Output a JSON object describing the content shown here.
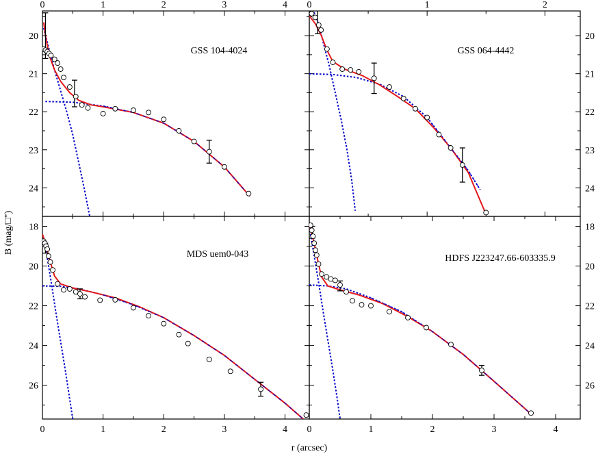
{
  "xlabel": "r (arcsec)",
  "ylabel": "B (mag/□\")",
  "colors": {
    "model": "#e31a1c",
    "component": "#0000cc",
    "points": "#000000"
  },
  "chart_data": [
    {
      "type": "scatter",
      "label": "GSS 104-4024",
      "xlim": [
        0,
        4.4
      ],
      "ylim": [
        24.75,
        19.35
      ],
      "xticks": [
        "0",
        "1",
        "2",
        "3",
        "4"
      ],
      "yticks": [
        "20",
        "21",
        "22",
        "23",
        "24"
      ],
      "points": [
        [
          0.02,
          20.35
        ],
        [
          0.05,
          20.38
        ],
        [
          0.08,
          20.42
        ],
        [
          0.11,
          20.47
        ],
        [
          0.14,
          20.52
        ],
        [
          0.2,
          20.62
        ],
        [
          0.25,
          20.72
        ],
        [
          0.3,
          20.88
        ],
        [
          0.35,
          21.1
        ],
        [
          0.45,
          21.35
        ],
        [
          0.55,
          21.6
        ],
        [
          0.65,
          21.82
        ],
        [
          0.75,
          21.9
        ],
        [
          1.0,
          22.05
        ],
        [
          1.2,
          21.92
        ],
        [
          1.5,
          21.96
        ],
        [
          1.75,
          22.02
        ],
        [
          2.0,
          22.2
        ],
        [
          2.25,
          22.5
        ],
        [
          2.5,
          22.78
        ],
        [
          2.75,
          23.05
        ],
        [
          3.0,
          23.45
        ],
        [
          3.4,
          24.15
        ]
      ],
      "errorbars": [
        [
          0.05,
          20.0,
          0.6
        ],
        [
          0.53,
          21.52,
          0.35
        ],
        [
          2.75,
          23.05,
          0.3
        ]
      ],
      "model": [
        [
          0.02,
          19.65
        ],
        [
          0.06,
          20.1
        ],
        [
          0.12,
          20.55
        ],
        [
          0.2,
          20.9
        ],
        [
          0.3,
          21.2
        ],
        [
          0.45,
          21.5
        ],
        [
          0.6,
          21.7
        ],
        [
          0.8,
          21.82
        ],
        [
          1.0,
          21.87
        ],
        [
          1.5,
          22.02
        ],
        [
          2.0,
          22.3
        ],
        [
          2.5,
          22.78
        ],
        [
          3.0,
          23.45
        ],
        [
          3.42,
          24.22
        ]
      ],
      "disk": [
        [
          0.05,
          21.73
        ],
        [
          0.5,
          21.75
        ],
        [
          1.0,
          21.85
        ],
        [
          1.5,
          22.02
        ],
        [
          2.0,
          22.3
        ],
        [
          2.5,
          22.78
        ],
        [
          3.0,
          23.45
        ],
        [
          3.42,
          24.22
        ]
      ],
      "bulge": [
        [
          0.02,
          19.8
        ],
        [
          0.1,
          20.3
        ],
        [
          0.2,
          20.9
        ],
        [
          0.3,
          21.45
        ],
        [
          0.4,
          22.0
        ],
        [
          0.5,
          22.6
        ],
        [
          0.6,
          23.35
        ],
        [
          0.7,
          24.1
        ],
        [
          0.78,
          24.75
        ]
      ]
    },
    {
      "type": "scatter",
      "label": "GSS 064-4442",
      "xlim": [
        0,
        2.3
      ],
      "ylim": [
        24.75,
        19.35
      ],
      "xticks": [
        "0",
        "1",
        "2"
      ],
      "yticks": [
        "20",
        "21",
        "22",
        "23",
        "24"
      ],
      "points": [
        [
          0.02,
          19.42
        ],
        [
          0.05,
          19.52
        ],
        [
          0.08,
          19.72
        ],
        [
          0.1,
          19.85
        ],
        [
          0.15,
          20.35
        ],
        [
          0.2,
          20.7
        ],
        [
          0.28,
          20.88
        ],
        [
          0.35,
          20.9
        ],
        [
          0.42,
          20.95
        ],
        [
          0.55,
          21.12
        ],
        [
          0.68,
          21.35
        ],
        [
          0.8,
          21.65
        ],
        [
          0.9,
          21.92
        ],
        [
          1.0,
          22.15
        ],
        [
          1.1,
          22.6
        ],
        [
          1.2,
          22.95
        ],
        [
          1.3,
          23.4
        ],
        [
          1.5,
          24.65
        ]
      ],
      "errorbars": [
        [
          0.07,
          19.6,
          0.35
        ],
        [
          0.55,
          21.12,
          0.4
        ],
        [
          1.3,
          23.4,
          0.45
        ]
      ],
      "model": [
        [
          0.0,
          19.48
        ],
        [
          0.05,
          19.68
        ],
        [
          0.1,
          19.98
        ],
        [
          0.15,
          20.38
        ],
        [
          0.2,
          20.68
        ],
        [
          0.3,
          20.88
        ],
        [
          0.45,
          21.05
        ],
        [
          0.6,
          21.3
        ],
        [
          0.75,
          21.6
        ],
        [
          0.9,
          21.92
        ],
        [
          1.05,
          22.4
        ],
        [
          1.2,
          22.95
        ],
        [
          1.35,
          23.6
        ],
        [
          1.5,
          24.7
        ]
      ],
      "disk": [
        [
          0.0,
          21.0
        ],
        [
          0.2,
          21.02
        ],
        [
          0.4,
          21.1
        ],
        [
          0.6,
          21.28
        ],
        [
          0.8,
          21.6
        ],
        [
          1.0,
          22.15
        ],
        [
          1.2,
          22.95
        ],
        [
          1.35,
          23.55
        ],
        [
          1.45,
          24.05
        ]
      ],
      "bulge": [
        [
          0.03,
          19.3
        ],
        [
          0.08,
          19.7
        ],
        [
          0.12,
          20.2
        ],
        [
          0.17,
          20.8
        ],
        [
          0.22,
          21.5
        ],
        [
          0.27,
          22.2
        ],
        [
          0.32,
          23.0
        ],
        [
          0.36,
          23.8
        ],
        [
          0.39,
          24.6
        ]
      ]
    },
    {
      "type": "scatter",
      "label": "MDS uem0-043",
      "xlim": [
        0,
        4.4
      ],
      "ylim": [
        27.7,
        17.5
      ],
      "xticks": [
        "0",
        "1",
        "2",
        "3",
        "4"
      ],
      "yticks": [
        "18",
        "20",
        "22",
        "24",
        "26"
      ],
      "points": [
        [
          0.02,
          18.75
        ],
        [
          0.04,
          18.85
        ],
        [
          0.06,
          19.0
        ],
        [
          0.08,
          19.15
        ],
        [
          0.1,
          19.5
        ],
        [
          0.13,
          19.8
        ],
        [
          0.17,
          20.2
        ],
        [
          0.25,
          20.9
        ],
        [
          0.35,
          21.2
        ],
        [
          0.45,
          21.15
        ],
        [
          0.55,
          21.3
        ],
        [
          0.62,
          21.4
        ],
        [
          0.7,
          21.55
        ],
        [
          0.95,
          21.72
        ],
        [
          1.2,
          21.7
        ],
        [
          1.5,
          22.1
        ],
        [
          1.75,
          22.5
        ],
        [
          2.0,
          22.9
        ],
        [
          2.25,
          23.45
        ],
        [
          2.4,
          23.9
        ],
        [
          2.75,
          24.7
        ],
        [
          3.1,
          25.3
        ],
        [
          3.6,
          26.2
        ],
        [
          4.35,
          27.5
        ]
      ],
      "errorbars": [
        [
          0.05,
          19.1,
          0.25
        ],
        [
          0.62,
          21.4,
          0.25
        ],
        [
          3.6,
          26.2,
          0.35
        ]
      ],
      "model": [
        [
          0.0,
          18.4
        ],
        [
          0.05,
          18.85
        ],
        [
          0.1,
          19.45
        ],
        [
          0.15,
          20.0
        ],
        [
          0.2,
          20.5
        ],
        [
          0.3,
          20.9
        ],
        [
          0.5,
          21.1
        ],
        [
          0.8,
          21.3
        ],
        [
          1.2,
          21.6
        ],
        [
          1.6,
          22.05
        ],
        [
          2.0,
          22.6
        ],
        [
          2.5,
          23.5
        ],
        [
          3.0,
          24.5
        ],
        [
          3.5,
          25.7
        ],
        [
          4.0,
          26.9
        ],
        [
          4.3,
          27.7
        ]
      ],
      "disk": [
        [
          0.0,
          21.0
        ],
        [
          0.3,
          21.02
        ],
        [
          0.6,
          21.15
        ],
        [
          1.0,
          21.45
        ],
        [
          1.5,
          21.95
        ],
        [
          2.0,
          22.6
        ],
        [
          2.5,
          23.5
        ],
        [
          3.0,
          24.5
        ],
        [
          3.5,
          25.7
        ],
        [
          4.0,
          26.9
        ],
        [
          4.3,
          27.7
        ]
      ],
      "bulge": [
        [
          0.02,
          18.6
        ],
        [
          0.08,
          19.6
        ],
        [
          0.15,
          20.9
        ],
        [
          0.22,
          22.3
        ],
        [
          0.3,
          23.8
        ],
        [
          0.38,
          25.3
        ],
        [
          0.45,
          26.7
        ],
        [
          0.5,
          27.7
        ]
      ]
    },
    {
      "type": "scatter",
      "label": "HDFS J223247.66-603335.9",
      "xlim": [
        0,
        4.4
      ],
      "ylim": [
        27.7,
        17.5
      ],
      "xticks": [
        "0",
        "1",
        "2",
        "3",
        "4"
      ],
      "yticks": [
        "18",
        "20",
        "22",
        "24",
        "26"
      ],
      "points": [
        [
          0.02,
          17.95
        ],
        [
          0.04,
          18.2
        ],
        [
          0.06,
          18.5
        ],
        [
          0.08,
          18.85
        ],
        [
          0.1,
          19.2
        ],
        [
          0.12,
          19.45
        ],
        [
          0.15,
          19.9
        ],
        [
          0.2,
          20.4
        ],
        [
          0.28,
          20.55
        ],
        [
          0.35,
          20.65
        ],
        [
          0.42,
          20.72
        ],
        [
          0.5,
          20.95
        ],
        [
          0.6,
          21.3
        ],
        [
          0.7,
          21.75
        ],
        [
          0.85,
          21.95
        ],
        [
          1.0,
          22.0
        ],
        [
          1.3,
          22.3
        ],
        [
          1.6,
          22.6
        ],
        [
          1.9,
          23.1
        ],
        [
          2.3,
          23.95
        ],
        [
          2.8,
          25.25
        ],
        [
          3.6,
          27.4
        ]
      ],
      "errorbars": [
        [
          0.05,
          18.3,
          0.3
        ],
        [
          0.5,
          21.0,
          0.25
        ],
        [
          2.8,
          25.25,
          0.25
        ]
      ],
      "model": [
        [
          0.0,
          18.0
        ],
        [
          0.05,
          18.5
        ],
        [
          0.1,
          19.15
        ],
        [
          0.15,
          19.9
        ],
        [
          0.2,
          20.55
        ],
        [
          0.3,
          21.0
        ],
        [
          0.5,
          21.2
        ],
        [
          0.8,
          21.45
        ],
        [
          1.2,
          21.9
        ],
        [
          1.6,
          22.55
        ],
        [
          2.0,
          23.3
        ],
        [
          2.5,
          24.45
        ],
        [
          3.0,
          25.8
        ],
        [
          3.6,
          27.45
        ]
      ],
      "disk": [
        [
          0.0,
          20.95
        ],
        [
          0.3,
          21.0
        ],
        [
          0.6,
          21.15
        ],
        [
          1.0,
          21.6
        ],
        [
          1.5,
          22.3
        ],
        [
          2.0,
          23.3
        ],
        [
          2.5,
          24.45
        ],
        [
          3.0,
          25.8
        ],
        [
          3.6,
          27.45
        ]
      ],
      "bulge": [
        [
          0.02,
          18.4
        ],
        [
          0.08,
          19.5
        ],
        [
          0.15,
          20.8
        ],
        [
          0.22,
          22.2
        ],
        [
          0.3,
          23.7
        ],
        [
          0.38,
          25.2
        ],
        [
          0.45,
          26.6
        ],
        [
          0.5,
          27.7
        ]
      ]
    }
  ]
}
